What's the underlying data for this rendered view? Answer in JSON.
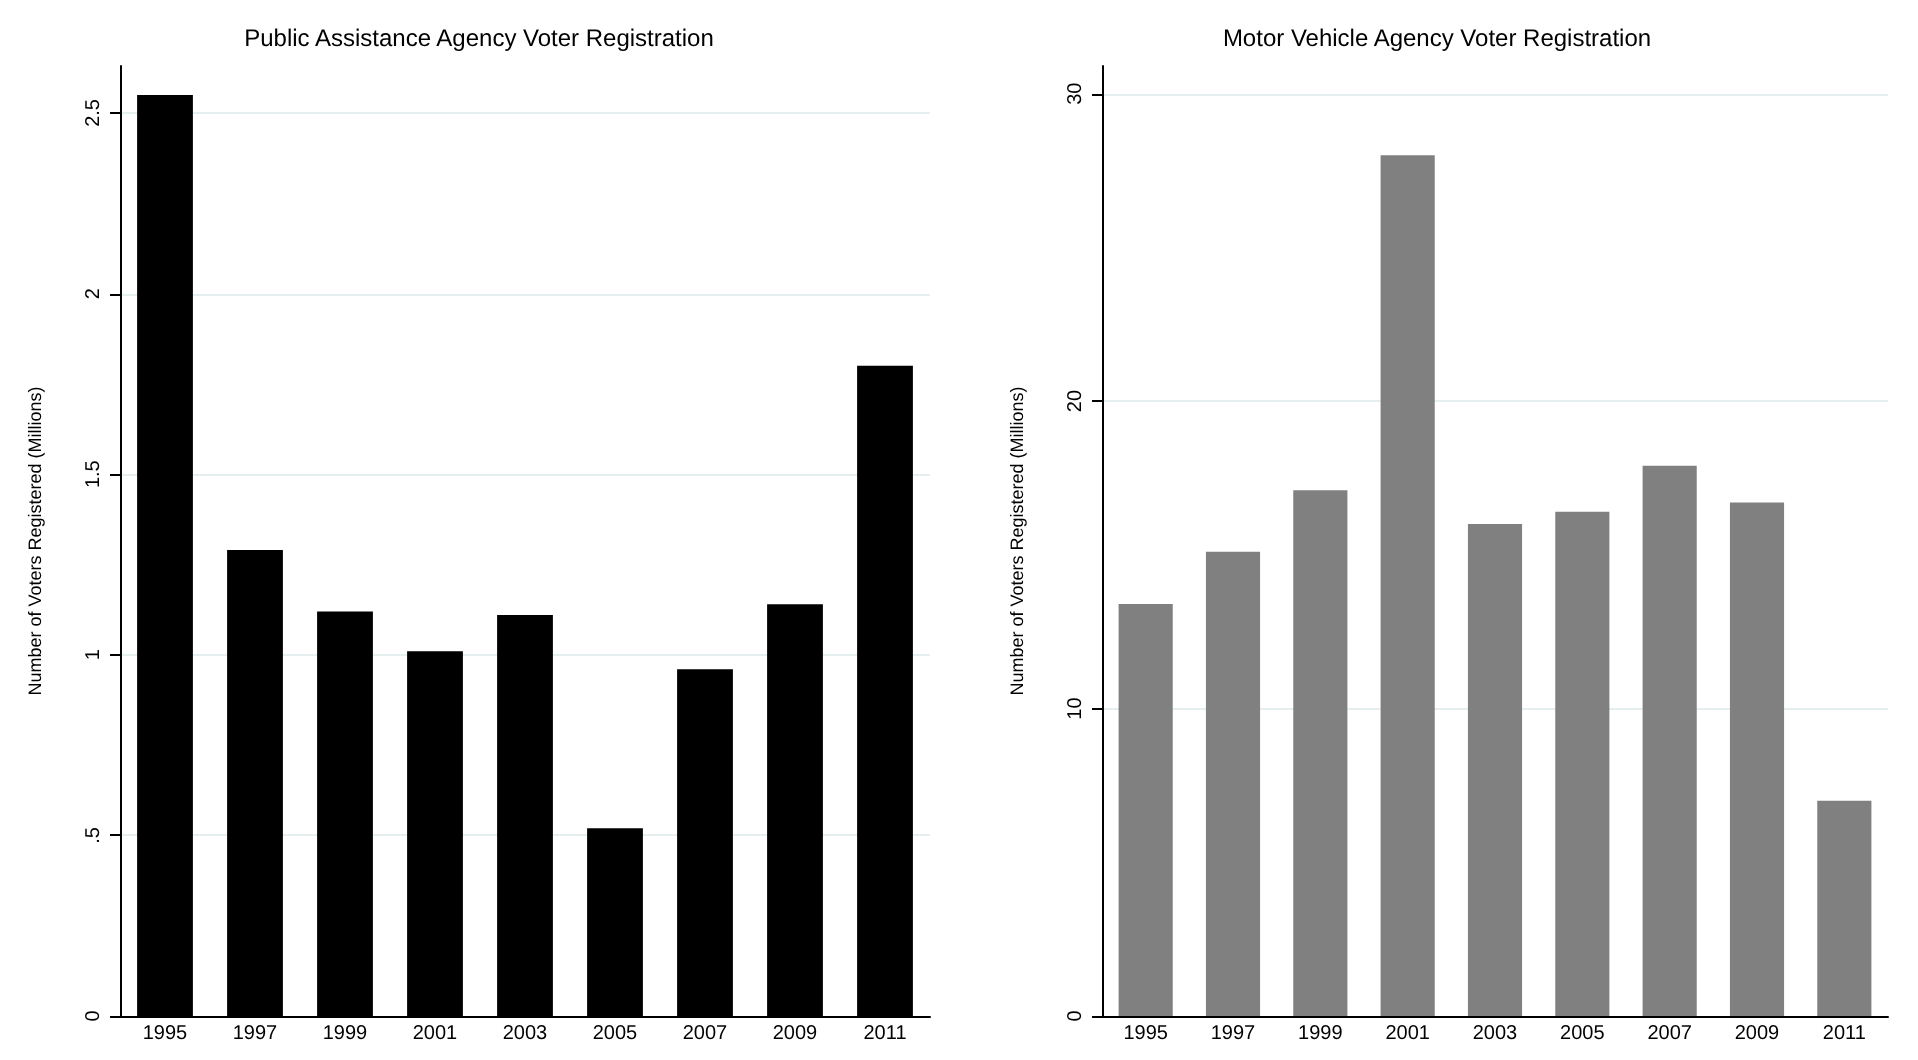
{
  "chart_data": [
    {
      "type": "bar",
      "title": "Public Assistance Agency Voter Registration",
      "ylabel": "Number of Voters Registered (Millions)",
      "categories": [
        "1995",
        "1997",
        "1999",
        "2001",
        "2003",
        "2005",
        "2007",
        "2009",
        "2011"
      ],
      "values": [
        2.55,
        1.29,
        1.12,
        1.01,
        1.11,
        0.52,
        0.96,
        1.14,
        1.8
      ],
      "color": "#000000",
      "ylim": [
        0,
        2.63
      ],
      "yticks": [
        0,
        {
          "value": 0.5,
          "label": ".5"
        },
        1,
        1.5,
        2,
        2.5
      ],
      "grid": "y"
    },
    {
      "type": "bar",
      "title": "Motor Vehicle Agency Voter Registration",
      "ylabel": "Number of Voters Registered (Millions)",
      "categories": [
        "1995",
        "1997",
        "1999",
        "2001",
        "2003",
        "2005",
        "2007",
        "2009",
        "2011"
      ],
      "values": [
        13.4,
        15.1,
        17.1,
        28.0,
        16.0,
        16.4,
        17.9,
        16.7,
        7.0
      ],
      "color": "#808080",
      "ylim": [
        0,
        30.9
      ],
      "yticks": [
        0,
        10,
        20,
        30
      ],
      "grid": "y"
    }
  ]
}
